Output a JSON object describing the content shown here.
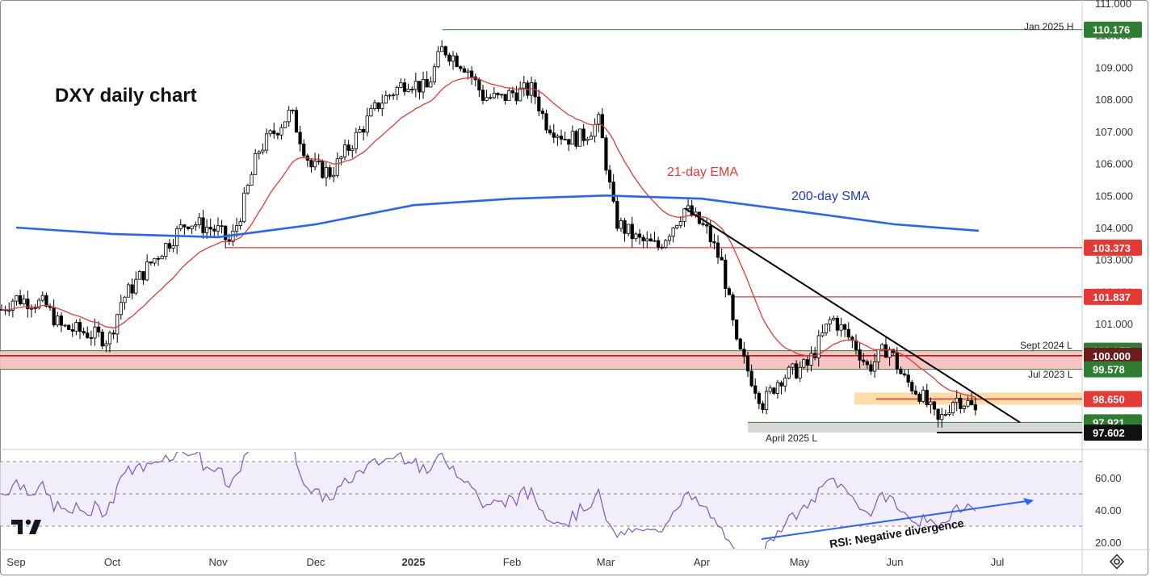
{
  "chart_data": {
    "type": "candlestick",
    "title": "DXY daily chart",
    "main_pane": {
      "y_ticks": [
        101.0,
        102.0,
        103.0,
        104.0,
        105.0,
        106.0,
        107.0,
        108.0,
        109.0,
        110.0,
        111.0
      ],
      "ylim": [
        97.1,
        111.1
      ],
      "overlays": [
        {
          "name": "21-day EMA",
          "color": "#e53935"
        },
        {
          "name": "200-day SMA",
          "color": "#2962ff",
          "points": [
            [
              "Sep",
              104.0
            ],
            [
              "Oct",
              103.8
            ],
            [
              "Nov",
              103.7
            ],
            [
              "Dec",
              104.1
            ],
            [
              "2025",
              104.7
            ],
            [
              "Feb",
              104.9
            ],
            [
              "Mar",
              105.0
            ],
            [
              "Apr",
              104.9
            ],
            [
              "May",
              104.5
            ],
            [
              "Jun",
              104.1
            ],
            [
              "Jun 26",
              103.9
            ]
          ]
        }
      ],
      "price_tags": [
        {
          "value": "110.176",
          "bg": "#2e7d32",
          "fg": "#ffffff"
        },
        {
          "value": "103.373",
          "bg": "#e53935",
          "fg": "#ffffff"
        },
        {
          "value": "101.837",
          "bg": "#e53935",
          "fg": "#ffffff"
        },
        {
          "value": "100.157",
          "bg": "#2e7d32",
          "fg": "#ffffff"
        },
        {
          "value": "100.000",
          "bg": "#6d1b1b",
          "fg": "#ffffff"
        },
        {
          "value": "99.578",
          "bg": "#2e7d32",
          "fg": "#ffffff"
        },
        {
          "value": "98.650",
          "bg": "#e53935",
          "fg": "#ffffff"
        },
        {
          "value": "97.921",
          "bg": "#2e7d32",
          "fg": "#ffffff"
        },
        {
          "value": "97.602",
          "bg": "#111111",
          "fg": "#ffffff"
        }
      ],
      "level_labels": [
        "Jan 2025 H",
        "Sept 2024 L",
        "Jul 2023 L",
        "April 2025 L"
      ],
      "annotations": [
        "21-day EMA",
        "200-day SMA"
      ]
    },
    "rsi_pane": {
      "y_ticks": [
        "60.00",
        "40.00",
        "20.00"
      ],
      "ylim": [
        16,
        76
      ],
      "levels": [
        70,
        50,
        30
      ],
      "annotation": "RSI: Negative divergence"
    },
    "x_ticks": [
      "Sep",
      "Oct",
      "Nov",
      "Dec",
      "2025",
      "Feb",
      "Mar",
      "Apr",
      "May",
      "Jun",
      "Jul"
    ],
    "colors": {
      "up": "#ffffff",
      "down": "#000000",
      "ema": "#e53935",
      "sma": "#2962ff",
      "rsi": "#7e57c2",
      "trendline": "#000000",
      "divergence": "#2962ff"
    }
  }
}
